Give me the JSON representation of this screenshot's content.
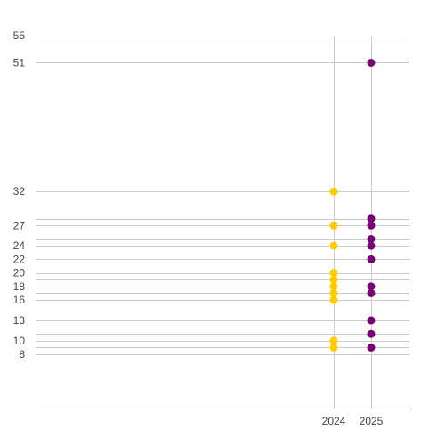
{
  "chart_data": {
    "type": "scatter",
    "title": "",
    "xlabel": "",
    "ylabel": "",
    "x_ticks": [
      2024,
      2025
    ],
    "y_ticks": [
      8,
      10,
      13,
      16,
      18,
      20,
      22,
      24,
      27,
      32,
      51,
      55
    ],
    "ylim": [
      0,
      55
    ],
    "grid": true,
    "legend": "none",
    "series": [
      {
        "color": "#ffcc00",
        "points": [
          {
            "x": 2024,
            "y": 32
          },
          {
            "x": 2024,
            "y": 27
          },
          {
            "x": 2024,
            "y": 24
          },
          {
            "x": 2024,
            "y": 20
          },
          {
            "x": 2024,
            "y": 19
          },
          {
            "x": 2024,
            "y": 18
          },
          {
            "x": 2024,
            "y": 17
          },
          {
            "x": 2024,
            "y": 16
          },
          {
            "x": 2024,
            "y": 10
          },
          {
            "x": 2024,
            "y": 9
          }
        ]
      },
      {
        "color": "#7a0077",
        "points": [
          {
            "x": 2025,
            "y": 51
          },
          {
            "x": 2025,
            "y": 28
          },
          {
            "x": 2025,
            "y": 27
          },
          {
            "x": 2025,
            "y": 25
          },
          {
            "x": 2025,
            "y": 24
          },
          {
            "x": 2025,
            "y": 22
          },
          {
            "x": 2025,
            "y": 18
          },
          {
            "x": 2025,
            "y": 17
          },
          {
            "x": 2025,
            "y": 13
          },
          {
            "x": 2025,
            "y": 11
          },
          {
            "x": 2025,
            "y": 9
          }
        ]
      }
    ]
  }
}
